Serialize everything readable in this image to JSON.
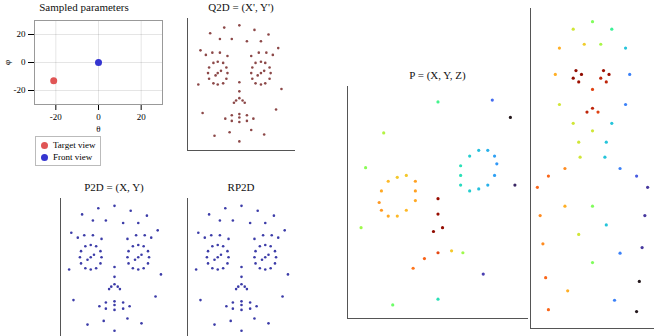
{
  "chart_data": [
    {
      "type": "scatter",
      "title": "Sampled parameters",
      "xlabel": "θ",
      "ylabel": "φ",
      "xlim": [
        -30,
        30
      ],
      "ylim": [
        -30,
        30
      ],
      "xticks": [
        -20,
        0,
        20
      ],
      "yticks": [
        -20,
        0,
        20
      ],
      "grid": true,
      "legend": "below",
      "series": [
        {
          "name": "Target view",
          "color": "#e05555",
          "x": [
            -21
          ],
          "values": [
            -13
          ]
        },
        {
          "name": "Front view",
          "color": "#3535d0",
          "x": [
            0
          ],
          "values": [
            0
          ]
        }
      ]
    },
    {
      "type": "scatter",
      "title": "Q2D = (X', Y')",
      "color": "#8c4848",
      "tick_labels": false,
      "xlim": [
        -50,
        50
      ],
      "ylim": [
        -58,
        58
      ],
      "x": [
        -13,
        -14,
        -17,
        -22,
        -26,
        -30,
        -31,
        -30,
        -26,
        -22,
        -17,
        -14,
        -22,
        -19,
        -24,
        -33,
        -27,
        -20,
        -13,
        9,
        10,
        13,
        18,
        22,
        26,
        27,
        26,
        22,
        18,
        13,
        10,
        18,
        21,
        15,
        9,
        16,
        23,
        29,
        -2,
        -2,
        -5,
        1,
        -2,
        -7,
        3,
        -15,
        -9,
        -2,
        5,
        11,
        -9,
        -2,
        5,
        -2,
        -29,
        -16,
        -2,
        12,
        25,
        -9,
        5,
        -38,
        34,
        -40,
        37,
        -36,
        32,
        -25,
        21,
        -2,
        -11,
        9,
        -20,
        18
      ],
      "values": [
        10,
        15,
        19,
        20,
        19,
        15,
        10,
        5,
        1,
        0,
        1,
        5,
        10,
        12,
        8,
        26,
        28,
        28,
        25,
        10,
        15,
        19,
        20,
        19,
        15,
        10,
        5,
        1,
        0,
        1,
        5,
        10,
        12,
        8,
        25,
        28,
        28,
        26,
        2,
        -6,
        -14,
        -14,
        -12,
        -16,
        -16,
        -30,
        -27,
        -26,
        -27,
        -30,
        -32,
        -33,
        -32,
        -29,
        45,
        50,
        52,
        48,
        44,
        40,
        38,
        30,
        32,
        0,
        -4,
        -25,
        -22,
        -45,
        -44,
        -50,
        -42,
        -40,
        40,
        38
      ]
    },
    {
      "type": "scatter",
      "title": "P2D = (X, Y)",
      "color": "#3c3ca8",
      "tick_labels": false,
      "xlim": [
        -50,
        50
      ],
      "ylim": [
        -58,
        58
      ],
      "x": [
        -12,
        -13,
        -17,
        -22,
        -27,
        -31,
        -32,
        -31,
        -27,
        -22,
        -17,
        -13,
        -22,
        -19,
        -25,
        -34,
        -28,
        -20,
        -12,
        12,
        13,
        17,
        22,
        27,
        31,
        32,
        31,
        27,
        22,
        17,
        13,
        22,
        25,
        19,
        12,
        20,
        28,
        34,
        0,
        0,
        -3,
        3,
        0,
        -5,
        5,
        -14,
        -8,
        0,
        8,
        14,
        -8,
        0,
        8,
        0,
        -30,
        -15,
        0,
        15,
        30,
        -8,
        8,
        -40,
        40,
        -42,
        43,
        -38,
        38,
        -25,
        25,
        0,
        -10,
        12,
        -20,
        22
      ],
      "values": [
        10,
        15,
        19,
        20,
        19,
        15,
        10,
        5,
        1,
        0,
        1,
        5,
        10,
        12,
        8,
        26,
        28,
        28,
        25,
        10,
        15,
        19,
        20,
        19,
        15,
        10,
        5,
        1,
        0,
        1,
        5,
        10,
        12,
        8,
        25,
        28,
        28,
        26,
        2,
        -6,
        -14,
        -14,
        -12,
        -16,
        -16,
        -30,
        -27,
        -26,
        -27,
        -30,
        -32,
        -33,
        -32,
        -29,
        45,
        50,
        52,
        48,
        44,
        40,
        38,
        30,
        32,
        0,
        -4,
        -25,
        -22,
        -45,
        -44,
        -50,
        -42,
        -40,
        40,
        38
      ]
    },
    {
      "type": "scatter",
      "title": "RP2D",
      "color": "#3c3ca8",
      "tick_labels": false,
      "xlim": [
        -50,
        50
      ],
      "ylim": [
        -58,
        58
      ],
      "x": [
        -12,
        -13,
        -17,
        -22,
        -27,
        -31,
        -32,
        -31,
        -27,
        -22,
        -17,
        -13,
        -22,
        -19,
        -25,
        -34,
        -28,
        -20,
        -12,
        12,
        13,
        17,
        22,
        27,
        31,
        32,
        31,
        27,
        22,
        17,
        13,
        22,
        25,
        19,
        12,
        20,
        28,
        34,
        0,
        0,
        -3,
        3,
        0,
        -5,
        5,
        -14,
        -8,
        0,
        8,
        14,
        -8,
        0,
        8,
        0,
        -30,
        -15,
        0,
        15,
        30,
        -8,
        8,
        -40,
        40,
        -42,
        43,
        -38,
        38,
        -25,
        25,
        0,
        -10,
        12,
        -20,
        22
      ],
      "values": [
        10,
        15,
        19,
        20,
        19,
        15,
        10,
        5,
        1,
        0,
        1,
        5,
        10,
        12,
        8,
        26,
        28,
        28,
        25,
        10,
        15,
        19,
        20,
        19,
        15,
        10,
        5,
        1,
        0,
        1,
        5,
        10,
        12,
        8,
        25,
        28,
        28,
        26,
        2,
        -6,
        -14,
        -14,
        -12,
        -16,
        -16,
        -30,
        -27,
        -26,
        -27,
        -30,
        -32,
        -33,
        -32,
        -29,
        45,
        50,
        52,
        48,
        44,
        40,
        38,
        30,
        32,
        0,
        -4,
        -25,
        -22,
        -45,
        -44,
        -50,
        -42,
        -40,
        40,
        38
      ]
    },
    {
      "type": "scatter3d",
      "title": "P = (X, Y, Z)",
      "tick_labels": false,
      "xlim": [
        -40,
        40
      ],
      "ylim": [
        -60,
        60
      ],
      "x": [
        -10,
        -10,
        -14,
        -18,
        -22,
        -25,
        -26,
        -25,
        -22,
        -18,
        -14,
        -10,
        10,
        10,
        14,
        18,
        22,
        25,
        26,
        25,
        22,
        18,
        14,
        10,
        0,
        0,
        -2,
        2,
        -11,
        -6,
        0,
        6,
        11,
        -24,
        0,
        24,
        -32,
        32,
        -34,
        34,
        -20,
        20,
        0
      ],
      "values": [
        6,
        11,
        14,
        13,
        11,
        6,
        0,
        -4,
        -7,
        -7,
        -4,
        1,
        14,
        19,
        24,
        27,
        27,
        24,
        20,
        14,
        9,
        7,
        6,
        9,
        2,
        -6,
        -15,
        -13,
        -34,
        -29,
        -26,
        -25,
        -26,
        36,
        52,
        53,
        18,
        44,
        -13,
        9,
        -53,
        -37,
        -50
      ],
      "z": [
        0.75,
        0.75,
        0.7,
        0.7,
        0.72,
        0.74,
        0.76,
        0.76,
        0.74,
        0.72,
        0.72,
        0.74,
        0.45,
        0.45,
        0.42,
        0.4,
        0.38,
        0.36,
        0.35,
        0.36,
        0.38,
        0.4,
        0.42,
        0.44,
        0.95,
        0.95,
        0.98,
        0.96,
        0.8,
        0.82,
        0.85,
        0.7,
        0.6,
        0.62,
        0.5,
        0.3,
        0.58,
        0.2,
        0.6,
        0.22,
        0.55,
        0.25,
        0.45
      ]
    },
    {
      "type": "scatter3d",
      "tick_labels": false,
      "xlim": [
        -45,
        45
      ],
      "ylim": [
        -105,
        65
      ],
      "x": [
        0,
        -14,
        14,
        -24,
        24,
        -27,
        27,
        -24,
        24,
        -14,
        14,
        0,
        -12,
        -8,
        -14,
        -10,
        8,
        12,
        6,
        10,
        0,
        0,
        -4,
        4,
        -6,
        6,
        -10,
        10,
        -9,
        9,
        -20,
        -32,
        -40,
        20,
        32,
        40,
        -38,
        -36,
        -34,
        -32,
        38,
        36,
        34,
        32,
        -20,
        -10,
        0,
        10,
        20,
        -18,
        16,
        0
      ],
      "values": [
        58,
        54,
        54,
        44,
        44,
        30,
        30,
        14,
        14,
        4,
        4,
        0,
        32,
        30,
        28,
        26,
        32,
        30,
        28,
        26,
        22,
        12,
        10,
        10,
        46,
        46,
        -6,
        -6,
        -14,
        -14,
        -20,
        -24,
        -30,
        -20,
        -24,
        -30,
        -45,
        -60,
        -78,
        -95,
        -45,
        -62,
        -80,
        -96,
        -40,
        -55,
        -70,
        -50,
        -65,
        -85,
        -90,
        -40
      ],
      "z": [
        0.5,
        0.6,
        0.4,
        0.7,
        0.3,
        0.7,
        0.2,
        0.6,
        0.2,
        0.6,
        0.3,
        0.6,
        1,
        1,
        1,
        0.95,
        0.95,
        0.95,
        0.9,
        0.9,
        0.85,
        0.9,
        0.9,
        0.85,
        0.65,
        0.55,
        0.6,
        0.3,
        0.6,
        0.3,
        0.75,
        0.8,
        0.8,
        0.2,
        0.15,
        0.1,
        0.75,
        0.75,
        0.8,
        0.8,
        0.1,
        0.1,
        0.05,
        0.05,
        0.7,
        0.6,
        0.5,
        0.3,
        0.2,
        0.7,
        0.2,
        0.5
      ]
    }
  ]
}
